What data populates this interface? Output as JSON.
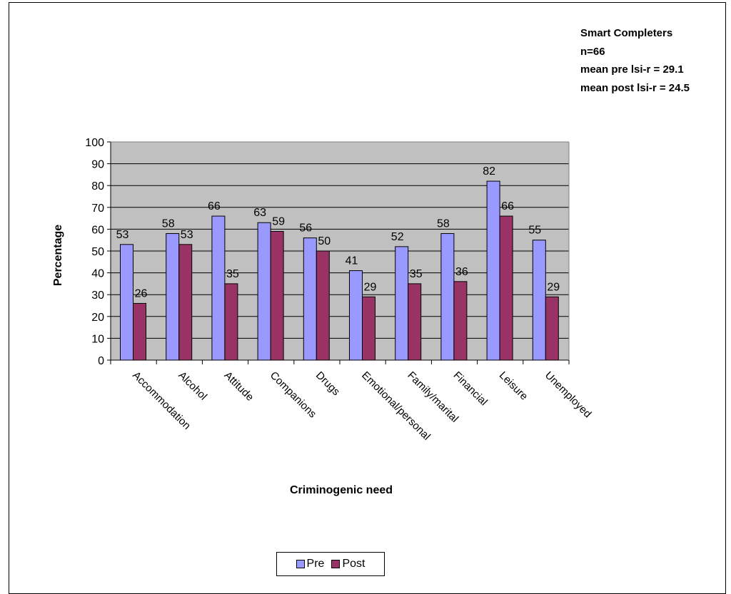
{
  "annotation": {
    "lines": [
      "Smart Completers",
      "n=66",
      "mean pre lsi-r = 29.1",
      "mean post lsi-r = 24.5"
    ]
  },
  "chart_data": {
    "type": "bar",
    "xlabel": "Criminogenic need",
    "ylabel": "Percentage",
    "ylim": [
      0,
      100
    ],
    "yticks": [
      0,
      10,
      20,
      30,
      40,
      50,
      60,
      70,
      80,
      90,
      100
    ],
    "grid": true,
    "legend_position": "bottom",
    "categories": [
      "Accommodation",
      "Alcohol",
      "Attitude",
      "Companions",
      "Drugs",
      "Emotional/personal",
      "Family/marital",
      "Financial",
      "Leisure",
      "Unemployed"
    ],
    "series": [
      {
        "name": "Pre",
        "color": "#9999ff",
        "values": [
          53,
          58,
          66,
          63,
          56,
          41,
          52,
          58,
          82,
          55
        ]
      },
      {
        "name": "Post",
        "color": "#993366",
        "values": [
          26,
          53,
          35,
          59,
          50,
          29,
          35,
          36,
          66,
          29
        ]
      }
    ],
    "plot_background": "#c0c0c0"
  }
}
